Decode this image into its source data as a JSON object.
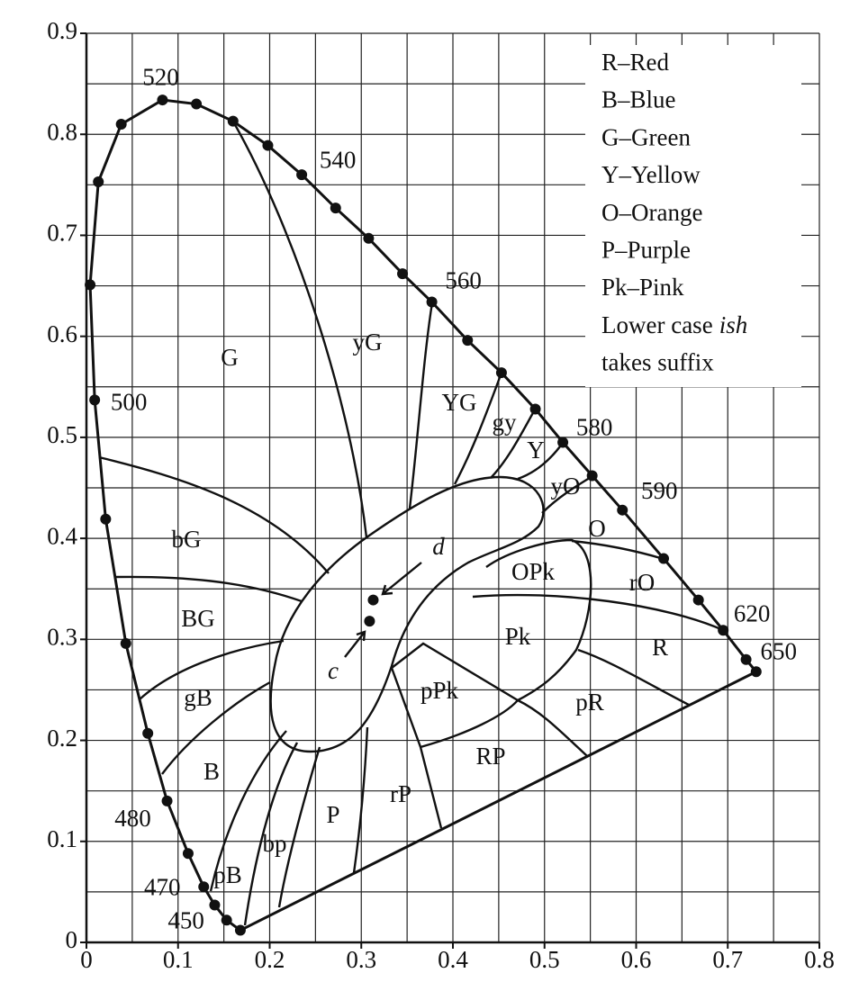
{
  "chart_data": {
    "type": "chromaticity",
    "xlim": [
      0,
      0.8
    ],
    "ylim": [
      0,
      0.9
    ],
    "xticks": [
      0,
      0.1,
      0.2,
      0.3,
      0.4,
      0.5,
      0.6,
      0.7,
      0.8
    ],
    "yticks": [
      0,
      0.1,
      0.2,
      0.3,
      0.4,
      0.5,
      0.6,
      0.7,
      0.8,
      0.9
    ],
    "grid": true,
    "locus": {
      "x": [
        0.168,
        0.153,
        0.14,
        0.128,
        0.111,
        0.088,
        0.067,
        0.043,
        0.021,
        0.009,
        0.004,
        0.013,
        0.038,
        0.083,
        0.12,
        0.16,
        0.198,
        0.235,
        0.272,
        0.308,
        0.345,
        0.377,
        0.416,
        0.453,
        0.49,
        0.52,
        0.552,
        0.585,
        0.63,
        0.668,
        0.695,
        0.72,
        0.731
      ],
      "y": [
        0.012,
        0.022,
        0.037,
        0.055,
        0.088,
        0.14,
        0.207,
        0.296,
        0.419,
        0.537,
        0.651,
        0.753,
        0.81,
        0.834,
        0.83,
        0.813,
        0.789,
        0.76,
        0.727,
        0.697,
        0.662,
        0.634,
        0.596,
        0.564,
        0.528,
        0.495,
        0.462,
        0.428,
        0.38,
        0.339,
        0.309,
        0.28,
        0.268
      ],
      "labels": [
        null,
        450,
        null,
        470,
        null,
        480,
        null,
        null,
        null,
        500,
        null,
        null,
        null,
        520,
        null,
        null,
        null,
        540,
        null,
        null,
        null,
        560,
        null,
        null,
        null,
        580,
        null,
        590,
        null,
        null,
        620,
        null,
        650
      ]
    },
    "points": {
      "x": [
        0.309,
        0.313
      ],
      "y": [
        0.318,
        0.339
      ],
      "labels": [
        "c",
        "d"
      ]
    },
    "regions": [
      "G",
      "yG",
      "YG",
      "gy",
      "Y",
      "yO",
      "O",
      "OPk",
      "rO",
      "Pk",
      "R",
      "pPk",
      "pR",
      "bG",
      "BG",
      "gB",
      "B",
      "RP",
      "P",
      "rP",
      "bp",
      "pB"
    ],
    "legend": [
      {
        "text": "R–Red"
      },
      {
        "text": "B–Blue"
      },
      {
        "text": "G–Green"
      },
      {
        "text": "Y–Yellow"
      },
      {
        "text": "O–Orange"
      },
      {
        "text": "P–Purple"
      },
      {
        "text": "Pk–Pink"
      },
      {
        "text": "Lower case",
        "em": "ish"
      },
      {
        "text": "takes suffix"
      }
    ]
  }
}
